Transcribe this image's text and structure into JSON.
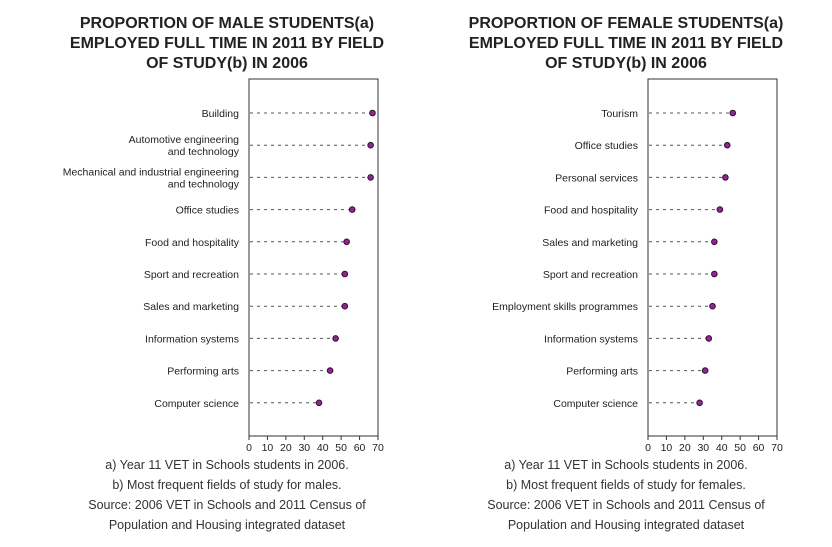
{
  "charts": [
    {
      "title_lines": [
        "PROPORTION OF MALE STUDENTS(a)",
        "EMPLOYED FULL TIME IN 2011 BY FIELD",
        "OF STUDY(b) IN 2006"
      ],
      "notes": [
        "a) Year 11 VET in Schools students in 2006.",
        "b) Most frequent fields of study for males.",
        "Source: 2006 VET in Schools and 2011 Census of",
        "Population and Housing integrated dataset"
      ]
    },
    {
      "title_lines": [
        "PROPORTION OF FEMALE STUDENTS(a)",
        "EMPLOYED FULL TIME IN 2011 BY FIELD",
        "OF STUDY(b) IN 2006"
      ],
      "notes": [
        "a) Year 11 VET in Schools students in 2006.",
        "b) Most frequent fields of study for females.",
        "Source: 2006 VET in Schools and 2011 Census of",
        "Population and Housing integrated dataset"
      ]
    }
  ],
  "colors": {
    "marker_fill": "#8b2a8b",
    "marker_stroke": "#3a0a3a",
    "leader_line": "#555555",
    "axis": "#333333"
  },
  "chart_data": [
    {
      "type": "scatter",
      "title": "PROPORTION OF MALE STUDENTS(a) EMPLOYED FULL TIME IN 2011 BY FIELD OF STUDY(b) IN 2006",
      "categories": [
        [
          "Building"
        ],
        [
          "Automotive engineering",
          "and technology"
        ],
        [
          "Mechanical and industrial engineering",
          "and technology"
        ],
        [
          "Office studies"
        ],
        [
          "Food and hospitality"
        ],
        [
          "Sport and recreation"
        ],
        [
          "Sales and marketing"
        ],
        [
          "Information systems"
        ],
        [
          "Performing arts"
        ],
        [
          "Computer science"
        ]
      ],
      "values": [
        67,
        66,
        66,
        56,
        53,
        52,
        52,
        47,
        44,
        38
      ],
      "xlim": [
        0,
        70
      ],
      "xticks": [
        0,
        10,
        20,
        30,
        40,
        50,
        60,
        70
      ],
      "grid": false
    },
    {
      "type": "scatter",
      "title": "PROPORTION OF FEMALE STUDENTS(a) EMPLOYED FULL TIME IN 2011 BY FIELD OF STUDY(b) IN 2006",
      "categories": [
        [
          "Tourism"
        ],
        [
          "Office studies"
        ],
        [
          "Personal services"
        ],
        [
          "Food and hospitality"
        ],
        [
          "Sales and marketing"
        ],
        [
          "Sport and recreation"
        ],
        [
          "Employment skills programmes"
        ],
        [
          "Information systems"
        ],
        [
          "Performing arts"
        ],
        [
          "Computer science"
        ]
      ],
      "values": [
        46,
        43,
        42,
        39,
        36,
        36,
        35,
        33,
        31,
        28
      ],
      "xlim": [
        0,
        70
      ],
      "xticks": [
        0,
        10,
        20,
        30,
        40,
        50,
        60,
        70
      ],
      "grid": false
    }
  ]
}
